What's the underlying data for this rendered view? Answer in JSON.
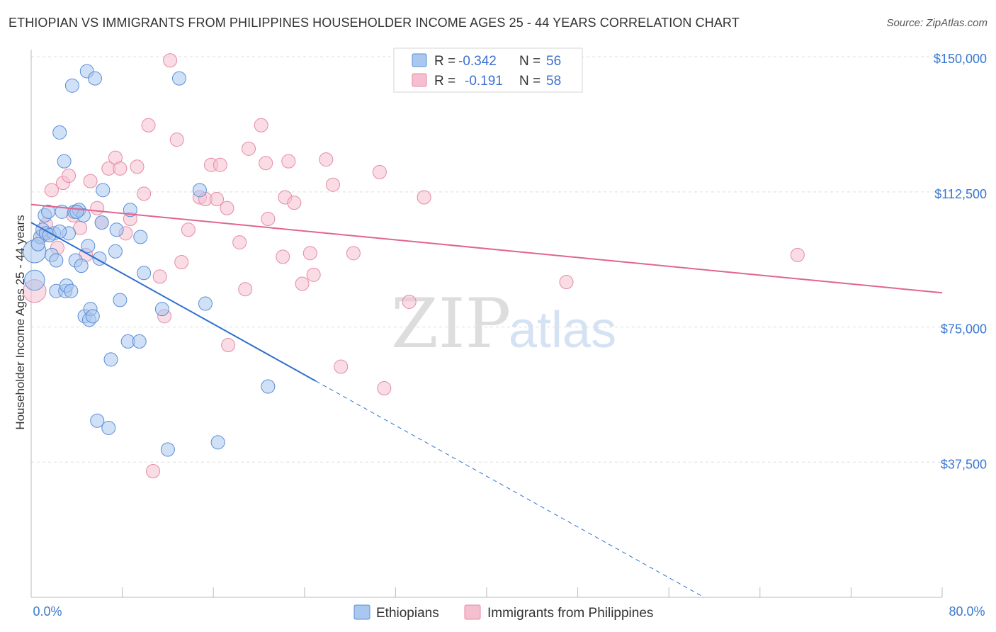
{
  "title": "ETHIOPIAN VS IMMIGRANTS FROM PHILIPPINES HOUSEHOLDER INCOME AGES 25 - 44 YEARS CORRELATION CHART",
  "source": "Source: ZipAtlas.com",
  "watermark": {
    "zip": "ZIP",
    "atlas": "atlas"
  },
  "colors": {
    "blue_fill": "#a9c7ef",
    "blue_stroke": "#5b8fd6",
    "blue_line": "#2f6fd0",
    "pink_fill": "#f6bfd0",
    "pink_stroke": "#e58aa8",
    "pink_line": "#e0658f",
    "grid": "#dddddd",
    "axis_text": "#3b78d0"
  },
  "legend": {
    "rows": [
      {
        "r_label": "R =",
        "r_value": "-0.342",
        "n_label": "N =",
        "n_value": "56"
      },
      {
        "r_label": "R =",
        "r_value": "-0.191",
        "n_label": "N =",
        "n_value": "58"
      }
    ]
  },
  "bottom_legend": [
    "Ethiopians",
    "Immigrants from Philippines"
  ],
  "chart_data": {
    "type": "scatter",
    "xlabel": "",
    "ylabel": "Householder Income Ages 25 - 44 years",
    "xlim": [
      0,
      80
    ],
    "ylim": [
      0,
      152000
    ],
    "x_tick_labels": [
      "0.0%",
      "80.0%"
    ],
    "y_ticks": [
      37500,
      75000,
      112500,
      150000
    ],
    "y_tick_labels": [
      "$37,500",
      "$75,000",
      "$112,500",
      "$150,000"
    ],
    "grid": true,
    "series": [
      {
        "name": "Ethiopians",
        "r": -0.342,
        "n": 56,
        "trend": {
          "x0": 0,
          "y0": 104000,
          "x1": 25,
          "y1": 60000,
          "dash_to_x": 60
        },
        "points": [
          [
            0.3,
            96000,
            1.7
          ],
          [
            0.3,
            88000,
            1.5
          ],
          [
            0.8,
            100000,
            1
          ],
          [
            1,
            102000,
            1
          ],
          [
            1.2,
            106000,
            1
          ],
          [
            1.3,
            101000,
            1
          ],
          [
            1.5,
            107000,
            1
          ],
          [
            1.8,
            95000,
            1
          ],
          [
            2,
            101000,
            1
          ],
          [
            2.2,
            93500,
            1
          ],
          [
            2.2,
            85000,
            1
          ],
          [
            2.5,
            129000,
            1
          ],
          [
            2.7,
            107000,
            1
          ],
          [
            2.9,
            121000,
            1
          ],
          [
            3,
            85000,
            1
          ],
          [
            3.1,
            86500,
            1
          ],
          [
            3.3,
            101000,
            1
          ],
          [
            3.5,
            85000,
            1
          ],
          [
            3.6,
            142000,
            1
          ],
          [
            3.8,
            107000,
            1
          ],
          [
            3.9,
            93500,
            1
          ],
          [
            4.2,
            107500,
            1
          ],
          [
            4.4,
            92000,
            1
          ],
          [
            4.6,
            106000,
            1
          ],
          [
            4.7,
            78000,
            1
          ],
          [
            4.9,
            146000,
            1
          ],
          [
            5,
            97500,
            1
          ],
          [
            5.1,
            77000,
            1
          ],
          [
            5.2,
            80000,
            1
          ],
          [
            5.4,
            78000,
            1
          ],
          [
            5.6,
            144000,
            1
          ],
          [
            5.8,
            49000,
            1
          ],
          [
            6,
            94000,
            1
          ],
          [
            6.2,
            104000,
            1
          ],
          [
            6.3,
            113000,
            1
          ],
          [
            6.8,
            47000,
            1
          ],
          [
            7,
            66000,
            1
          ],
          [
            7.4,
            96000,
            1
          ],
          [
            7.5,
            102000,
            1
          ],
          [
            7.8,
            82500,
            1
          ],
          [
            8.5,
            71000,
            1
          ],
          [
            8.7,
            107500,
            1
          ],
          [
            9.5,
            71000,
            1
          ],
          [
            9.6,
            100000,
            1
          ],
          [
            9.9,
            90000,
            1
          ],
          [
            11.5,
            80000,
            1
          ],
          [
            12,
            41000,
            1
          ],
          [
            13,
            144000,
            1
          ],
          [
            14.8,
            113000,
            1
          ],
          [
            15.3,
            81500,
            1
          ],
          [
            16.4,
            43000,
            1
          ],
          [
            20.8,
            58500,
            1
          ],
          [
            4,
            107000,
            1
          ],
          [
            1.6,
            100500,
            1
          ],
          [
            2.5,
            101500,
            1
          ],
          [
            0.6,
            98000,
            1
          ]
        ]
      },
      {
        "name": "Immigrants from Philippines",
        "r": -0.191,
        "n": 58,
        "trend": {
          "x0": 0,
          "y0": 109000,
          "x1": 80,
          "y1": 84500
        },
        "points": [
          [
            0.3,
            85000,
            1.7
          ],
          [
            1,
            100500,
            1
          ],
          [
            1.3,
            103500,
            1
          ],
          [
            1.8,
            113000,
            1
          ],
          [
            2.3,
            97000,
            1
          ],
          [
            2.8,
            115000,
            1
          ],
          [
            3.3,
            117000,
            1
          ],
          [
            3.7,
            106000,
            1
          ],
          [
            4.3,
            102500,
            1
          ],
          [
            4.8,
            95000,
            1
          ],
          [
            5.2,
            115500,
            1
          ],
          [
            5.8,
            108000,
            1
          ],
          [
            6.2,
            104000,
            1
          ],
          [
            6.8,
            119000,
            1
          ],
          [
            7.4,
            122000,
            1
          ],
          [
            7.8,
            119000,
            1
          ],
          [
            8.3,
            101000,
            1
          ],
          [
            8.7,
            105000,
            1
          ],
          [
            9.3,
            119500,
            1
          ],
          [
            9.9,
            112000,
            1
          ],
          [
            10.3,
            131000,
            1
          ],
          [
            11.3,
            89000,
            1
          ],
          [
            11.7,
            78000,
            1
          ],
          [
            12.2,
            149000,
            1
          ],
          [
            12.8,
            127000,
            1
          ],
          [
            13.2,
            93000,
            1
          ],
          [
            13.8,
            102000,
            1
          ],
          [
            14.8,
            111000,
            1
          ],
          [
            15.3,
            110500,
            1
          ],
          [
            15.8,
            120000,
            1
          ],
          [
            16.3,
            110500,
            1
          ],
          [
            17.2,
            108000,
            1
          ],
          [
            17.3,
            70000,
            1
          ],
          [
            18.3,
            98500,
            1
          ],
          [
            18.8,
            85500,
            1
          ],
          [
            19.1,
            124500,
            1
          ],
          [
            20.2,
            131000,
            1
          ],
          [
            20.6,
            120500,
            1
          ],
          [
            20.8,
            105000,
            1
          ],
          [
            22.1,
            94500,
            1
          ],
          [
            22.3,
            111000,
            1
          ],
          [
            22.6,
            121000,
            1
          ],
          [
            23.1,
            109500,
            1
          ],
          [
            23.8,
            87000,
            1
          ],
          [
            24.8,
            89500,
            1
          ],
          [
            25.9,
            121500,
            1
          ],
          [
            26.5,
            114500,
            1
          ],
          [
            27.2,
            64000,
            1
          ],
          [
            28.3,
            95500,
            1
          ],
          [
            30.6,
            118000,
            1
          ],
          [
            31,
            58000,
            1
          ],
          [
            33.2,
            82000,
            1
          ],
          [
            34.5,
            111000,
            1
          ],
          [
            47,
            87500,
            1
          ],
          [
            67.3,
            95000,
            1
          ],
          [
            10.7,
            35000,
            1
          ],
          [
            24.5,
            95500,
            1
          ],
          [
            16.6,
            120000,
            1
          ]
        ]
      }
    ]
  }
}
